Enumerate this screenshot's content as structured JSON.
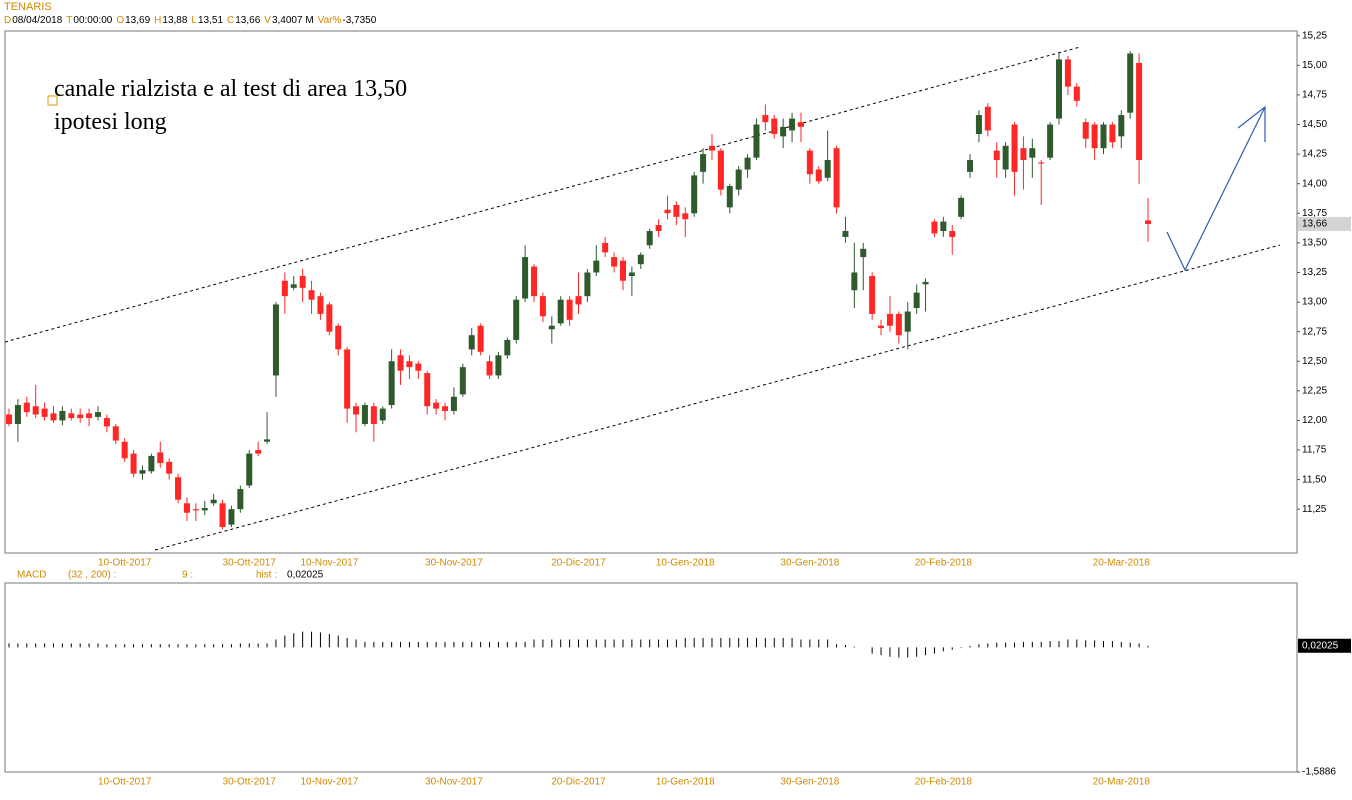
{
  "chart_data": [
    {
      "type": "candlestick",
      "title": "TENARIS",
      "legend": [
        {
          "key": "D",
          "value": "08/04/2018"
        },
        {
          "key": "T",
          "value": "00:00:00"
        },
        {
          "key": "O",
          "value": "13,69"
        },
        {
          "key": "H",
          "value": "13,88"
        },
        {
          "key": "L",
          "value": "13,51"
        },
        {
          "key": "C",
          "value": "13,66"
        },
        {
          "key": "V",
          "value": "3,4007 M"
        },
        {
          "key": "Var%",
          "value": "-3,7350"
        }
      ],
      "annotations": [
        "canale rialzista e al test di area 13,50",
        "ipotesi long"
      ],
      "categories": [
        null,
        null,
        null,
        null,
        null,
        null,
        null,
        null,
        null,
        null,
        null,
        null,
        null,
        "10-Ott-2017",
        null,
        null,
        null,
        null,
        null,
        null,
        null,
        null,
        null,
        null,
        null,
        null,
        null,
        "30-Ott-2017",
        null,
        null,
        null,
        null,
        null,
        null,
        null,
        null,
        "10-Nov-2017",
        null,
        null,
        null,
        null,
        null,
        null,
        null,
        null,
        null,
        null,
        null,
        null,
        null,
        "30-Nov-2017",
        null,
        null,
        null,
        null,
        null,
        null,
        null,
        null,
        null,
        null,
        null,
        null,
        null,
        "20-Dic-2017",
        null,
        null,
        null,
        null,
        null,
        null,
        null,
        null,
        null,
        null,
        null,
        "10-Gen-2018",
        null,
        null,
        null,
        null,
        null,
        null,
        null,
        null,
        null,
        null,
        null,
        null,
        null,
        "30-Gen-2018",
        null,
        null,
        null,
        null,
        null,
        null,
        null,
        null,
        null,
        null,
        null,
        null,
        null,
        null,
        "20-Feb-2018",
        null,
        null,
        null,
        null,
        null,
        null,
        null,
        null,
        null,
        null,
        null,
        null,
        null,
        null,
        null,
        null,
        null,
        null,
        null,
        "20-Mar-2018",
        null,
        null,
        null
      ],
      "open": [
        12.05,
        11.97,
        12.15,
        12.12,
        12.1,
        12.06,
        12.0,
        12.06,
        12.05,
        12.06,
        12.03,
        12.02,
        11.95,
        11.82,
        11.72,
        11.55,
        11.57,
        11.73,
        11.65,
        11.52,
        11.3,
        11.25,
        11.24,
        11.3,
        11.3,
        11.12,
        11.25,
        11.45,
        11.75,
        11.82,
        12.38,
        13.18,
        13.12,
        13.22,
        13.1,
        13.05,
        12.98,
        12.8,
        12.6,
        12.12,
        11.97,
        12.12,
        12.0,
        12.13,
        12.55,
        12.5,
        12.48,
        12.4,
        12.15,
        12.12,
        12.08,
        12.22,
        12.6,
        12.8,
        12.5,
        12.38,
        12.55,
        12.68,
        13.03,
        13.3,
        13.05,
        12.77,
        12.82,
        13.02,
        13.05,
        13.05,
        13.25,
        13.5,
        13.38,
        13.35,
        13.22,
        13.32,
        13.48,
        13.65,
        13.78,
        13.82,
        13.75,
        13.75,
        14.1,
        14.32,
        14.28,
        13.8,
        13.95,
        14.12,
        14.22,
        14.58,
        14.55,
        14.4,
        14.45,
        14.52,
        14.28,
        14.12,
        14.05,
        14.3,
        13.55,
        13.1,
        13.38,
        13.22,
        12.8,
        12.9,
        12.9,
        12.75,
        12.95,
        13.15,
        13.68,
        13.6,
        13.6,
        13.72,
        14.1,
        14.42,
        14.65,
        14.28,
        14.12,
        14.5,
        14.3,
        14.22,
        14.18,
        14.22,
        14.55,
        15.05,
        14.82,
        14.52,
        14.5,
        14.3,
        14.5,
        14.4,
        14.6,
        15.02,
        13.69
      ],
      "high": [
        12.1,
        12.18,
        12.2,
        12.3,
        12.15,
        12.12,
        12.12,
        12.1,
        12.1,
        12.1,
        12.12,
        12.05,
        11.97,
        11.85,
        11.75,
        11.62,
        11.72,
        11.82,
        11.68,
        11.55,
        11.35,
        11.3,
        11.32,
        11.38,
        11.33,
        11.28,
        11.45,
        11.75,
        11.82,
        12.07,
        13.0,
        13.25,
        13.22,
        13.28,
        13.18,
        13.08,
        13.0,
        12.82,
        12.62,
        12.15,
        12.15,
        12.15,
        12.12,
        12.6,
        12.6,
        12.55,
        12.5,
        12.42,
        12.18,
        12.15,
        12.28,
        12.48,
        12.78,
        12.82,
        12.55,
        12.58,
        12.7,
        13.05,
        13.48,
        13.32,
        13.08,
        12.88,
        13.05,
        13.05,
        13.25,
        13.28,
        13.48,
        13.55,
        13.42,
        13.38,
        13.3,
        13.42,
        13.62,
        13.7,
        13.9,
        13.85,
        13.8,
        14.1,
        14.3,
        14.42,
        14.3,
        14.0,
        14.15,
        14.25,
        14.55,
        14.67,
        14.58,
        14.55,
        14.6,
        14.6,
        14.3,
        14.15,
        14.45,
        14.32,
        13.72,
        13.5,
        13.5,
        13.25,
        12.85,
        13.05,
        12.92,
        13.0,
        13.15,
        13.2,
        13.7,
        13.72,
        13.65,
        13.9,
        14.25,
        14.62,
        14.68,
        14.35,
        14.35,
        14.52,
        14.4,
        14.38,
        14.2,
        14.52,
        15.1,
        15.08,
        14.85,
        14.55,
        14.52,
        14.52,
        14.52,
        14.62,
        15.12,
        15.1,
        13.88
      ],
      "low": [
        11.95,
        11.82,
        12.03,
        12.02,
        12.0,
        11.98,
        11.96,
        12.0,
        11.98,
        11.95,
        12.0,
        11.9,
        11.8,
        11.65,
        11.52,
        11.5,
        11.55,
        11.6,
        11.5,
        11.3,
        11.15,
        11.15,
        11.2,
        11.28,
        11.08,
        11.1,
        11.22,
        11.43,
        11.7,
        11.8,
        12.2,
        12.9,
        13.1,
        13.0,
        12.9,
        12.85,
        12.72,
        12.55,
        11.98,
        11.9,
        11.95,
        11.82,
        11.97,
        12.1,
        12.3,
        12.35,
        12.35,
        12.05,
        12.05,
        12.0,
        12.05,
        12.2,
        12.55,
        12.55,
        12.35,
        12.35,
        12.52,
        12.65,
        13.0,
        13.0,
        12.83,
        12.65,
        12.8,
        12.8,
        12.9,
        13.0,
        13.22,
        13.38,
        13.25,
        13.1,
        13.05,
        13.28,
        13.45,
        13.55,
        13.7,
        13.65,
        13.55,
        13.72,
        14.0,
        14.2,
        13.9,
        13.75,
        13.9,
        14.05,
        14.2,
        14.45,
        14.38,
        14.3,
        14.35,
        14.35,
        14.0,
        14.0,
        14.02,
        13.75,
        13.5,
        12.95,
        13.1,
        12.85,
        12.72,
        12.75,
        12.65,
        12.6,
        12.9,
        12.92,
        13.55,
        13.55,
        13.4,
        13.7,
        14.05,
        14.35,
        14.4,
        14.05,
        14.05,
        13.9,
        13.95,
        14.05,
        13.82,
        14.2,
        14.5,
        14.75,
        14.65,
        14.3,
        14.2,
        14.25,
        14.3,
        14.3,
        14.55,
        14.0,
        13.51
      ],
      "close": [
        11.97,
        12.13,
        12.07,
        12.05,
        12.03,
        12.0,
        12.08,
        12.02,
        12.02,
        12.02,
        12.07,
        11.95,
        11.83,
        11.68,
        11.55,
        11.58,
        11.7,
        11.64,
        11.55,
        11.33,
        11.22,
        11.24,
        11.26,
        11.33,
        11.1,
        11.25,
        11.42,
        11.72,
        11.72,
        11.84,
        12.98,
        13.05,
        13.15,
        13.12,
        13.02,
        12.9,
        12.75,
        12.6,
        12.1,
        12.05,
        12.13,
        11.97,
        12.1,
        12.5,
        12.42,
        12.45,
        12.42,
        12.12,
        12.1,
        12.08,
        12.2,
        12.45,
        12.72,
        12.58,
        12.38,
        12.55,
        12.68,
        13.02,
        13.38,
        13.05,
        12.88,
        12.8,
        13.02,
        12.85,
        12.98,
        13.25,
        13.35,
        13.42,
        13.3,
        13.18,
        13.25,
        13.4,
        13.6,
        13.6,
        13.75,
        13.72,
        13.7,
        14.07,
        14.25,
        14.28,
        13.95,
        13.98,
        14.12,
        14.22,
        14.5,
        14.52,
        14.42,
        14.48,
        14.55,
        14.48,
        14.08,
        14.02,
        14.2,
        13.8,
        13.6,
        13.25,
        13.45,
        12.9,
        12.78,
        12.8,
        12.72,
        12.92,
        13.08,
        13.17,
        13.58,
        13.68,
        13.55,
        13.88,
        14.2,
        14.58,
        14.45,
        14.2,
        14.32,
        14.1,
        14.2,
        14.3,
        14.17,
        14.5,
        15.05,
        14.82,
        14.7,
        14.38,
        14.3,
        14.5,
        14.35,
        14.58,
        15.1,
        14.2,
        13.66
      ],
      "up_color": "#2e5a2e",
      "down_color": "#ff2626",
      "ylim": [
        10.88,
        15.29
      ],
      "yticks": [
        {
          "value": 11.25,
          "label": "11,25"
        },
        {
          "value": 11.5,
          "label": "11,50"
        },
        {
          "value": 11.75,
          "label": "11,75"
        },
        {
          "value": 12,
          "label": "12,00"
        },
        {
          "value": 12.25,
          "label": "12,25"
        },
        {
          "value": 12.5,
          "label": "12,50"
        },
        {
          "value": 12.75,
          "label": "12,75"
        },
        {
          "value": 13,
          "label": "13,00"
        },
        {
          "value": 13.25,
          "label": "13,25"
        },
        {
          "value": 13.5,
          "label": "13,50"
        },
        {
          "value": 13.75,
          "label": "13,75"
        },
        {
          "value": 14,
          "label": "14,00"
        },
        {
          "value": 14.25,
          "label": "14,25"
        },
        {
          "value": 14.5,
          "label": "14,50"
        },
        {
          "value": 14.75,
          "label": "14,75"
        },
        {
          "value": 15,
          "label": "15,00"
        },
        {
          "value": 15.25,
          "label": "15,25"
        }
      ],
      "last_value": {
        "value": 13.66,
        "label": "13,66"
      }
    },
    {
      "type": "bar",
      "title": "MACD",
      "params": [
        "(32 , 200) :",
        "9 :",
        "hist :"
      ],
      "hist_label": "0,02025",
      "values": [
        0.05,
        0.05,
        0.05,
        0.05,
        0.05,
        0.05,
        0.05,
        0.05,
        0.05,
        0.05,
        0.05,
        0.04,
        0.04,
        0.04,
        0.04,
        0.04,
        0.04,
        0.04,
        0.04,
        0.04,
        0.04,
        0.04,
        0.04,
        0.04,
        0.04,
        0.04,
        0.05,
        0.05,
        0.05,
        0.05,
        0.1,
        0.15,
        0.18,
        0.2,
        0.2,
        0.19,
        0.17,
        0.15,
        0.12,
        0.1,
        0.07,
        0.07,
        0.07,
        0.07,
        0.07,
        0.07,
        0.07,
        0.07,
        0.07,
        0.07,
        0.07,
        0.07,
        0.07,
        0.07,
        0.07,
        0.07,
        0.07,
        0.07,
        0.07,
        0.1,
        0.1,
        0.1,
        0.1,
        0.1,
        0.1,
        0.1,
        0.1,
        0.1,
        0.1,
        0.1,
        0.1,
        0.1,
        0.1,
        0.1,
        0.1,
        0.1,
        0.12,
        0.12,
        0.12,
        0.12,
        0.12,
        0.12,
        0.12,
        0.12,
        0.12,
        0.12,
        0.12,
        0.12,
        0.12,
        0.1,
        0.1,
        0.1,
        0.1,
        0.04,
        0.03,
        0.01,
        0,
        -0.08,
        -0.1,
        -0.12,
        -0.13,
        -0.13,
        -0.12,
        -0.1,
        -0.08,
        -0.05,
        -0.03,
        -0.01,
        0.02,
        0.04,
        0.05,
        0.06,
        0.06,
        0.06,
        0.07,
        0.07,
        0.07,
        0.08,
        0.08,
        0.1,
        0.1,
        0.09,
        0.09,
        0.08,
        0.08,
        0.07,
        0.06,
        0.05,
        0.02025
      ],
      "color": "#000000",
      "ylim": [
        -1.5886,
        0.82
      ],
      "yticks": [
        {
          "value": -1.5886,
          "label": "-1,5886"
        }
      ],
      "last_value": {
        "value": 0.02025,
        "label": "0,02025"
      }
    }
  ]
}
